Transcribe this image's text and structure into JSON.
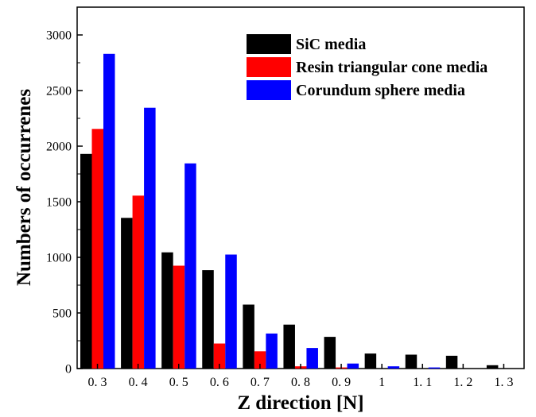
{
  "chart_data": {
    "type": "bar",
    "xlabel": "Z direction [N]",
    "ylabel": "Numbers of occurrenes",
    "categories": [
      "0. 3",
      "0. 4",
      "0. 5",
      "0. 6",
      "0. 7",
      "0. 8",
      "0. 9",
      "1",
      "1. 1",
      "1. 2",
      "1. 3"
    ],
    "series": [
      {
        "name": "SiC media",
        "color": "#000000",
        "values": [
          1930,
          1355,
          1045,
          885,
          575,
          395,
          285,
          135,
          125,
          115,
          30
        ]
      },
      {
        "name": "Resin triangular cone media",
        "color": "#ff0000",
        "values": [
          2155,
          1555,
          925,
          225,
          155,
          20,
          10,
          0,
          0,
          0,
          0
        ]
      },
      {
        "name": "Corundum sphere media",
        "color": "#0000ff",
        "values": [
          2830,
          2345,
          1845,
          1025,
          315,
          185,
          45,
          20,
          10,
          0,
          0
        ]
      }
    ],
    "ylim": [
      0,
      3250
    ],
    "yticks": [
      0,
      500,
      1000,
      1500,
      2000,
      2500,
      3000
    ],
    "grid": false,
    "legend_position": "top-right"
  }
}
